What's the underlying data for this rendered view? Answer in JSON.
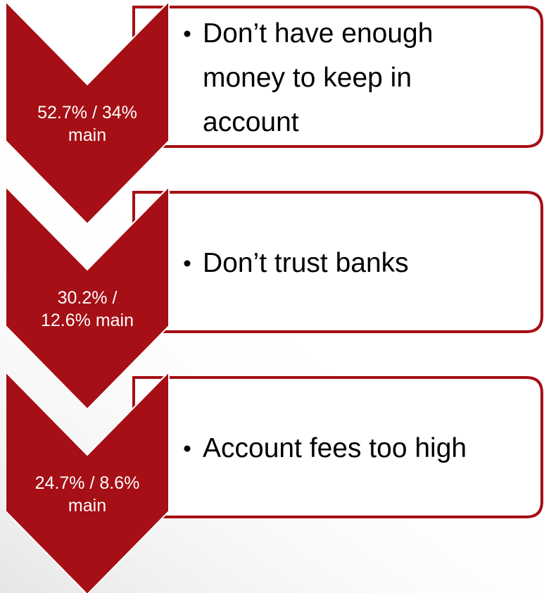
{
  "items": [
    {
      "stat": [
        "52.7% / 34%",
        "main"
      ],
      "text": [
        "Don’t have enough",
        "money to keep in",
        "account"
      ]
    },
    {
      "stat": [
        "30.2% /",
        "12.6% main"
      ],
      "text": [
        "Don’t trust banks"
      ]
    },
    {
      "stat": [
        "24.7% / 8.6%",
        "main"
      ],
      "text": [
        "Account fees too high"
      ]
    }
  ]
}
